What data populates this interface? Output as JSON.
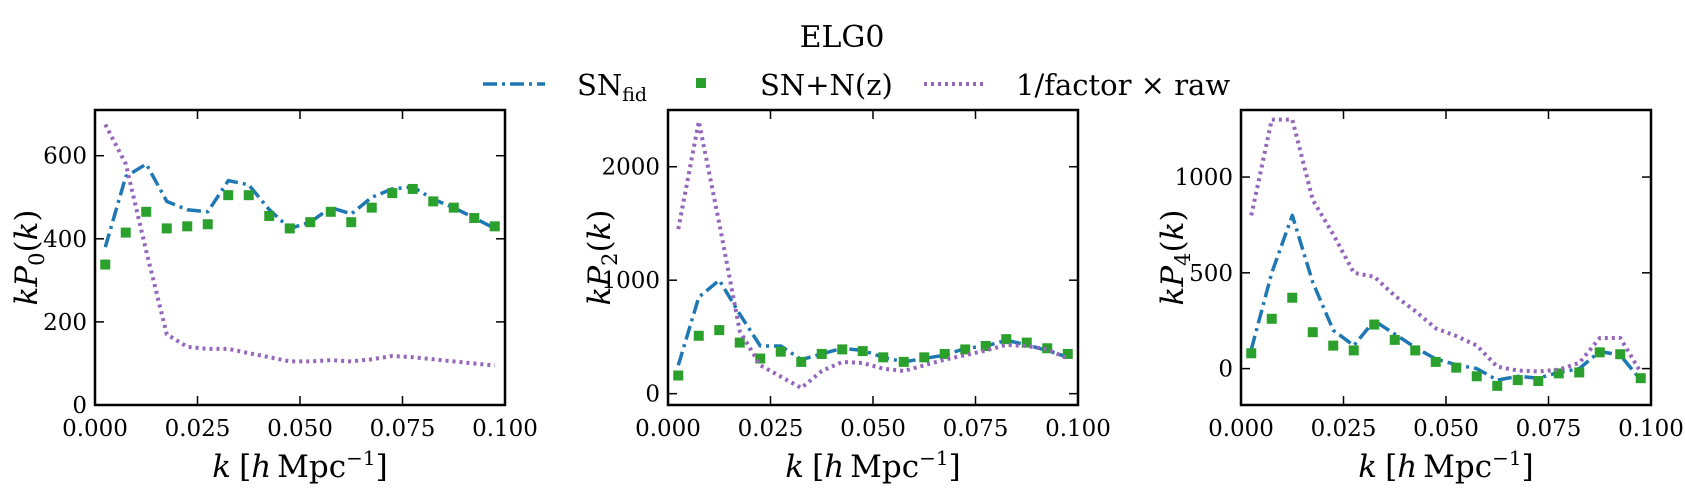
{
  "figure": {
    "title": "ELG0",
    "legend": [
      {
        "name": "SN",
        "subscript": "fid",
        "style": "dashdot",
        "color": "#1f77b4"
      },
      {
        "name": "SN+N(z)",
        "style": "square-markers",
        "color": "#2ca02c"
      },
      {
        "name": "1/factor × raw",
        "style": "dotted",
        "color": "#9467bd"
      }
    ]
  },
  "colors": {
    "sn_fid": "#1f77b4",
    "sn_nz": "#2ca02c",
    "raw": "#9467bd"
  },
  "chart_data": [
    {
      "type": "line",
      "xlabel": "k [h Mpc⁻¹]",
      "ylabel": "kP₀(k)",
      "xlim": [
        0.0,
        0.1
      ],
      "ylim": [
        0,
        710
      ],
      "xticks": [
        0.0,
        0.025,
        0.05,
        0.075,
        0.1
      ],
      "xtick_labels": [
        "0.000",
        "0.025",
        "0.050",
        "0.075",
        "0.100"
      ],
      "yticks": [
        0,
        200,
        400,
        600
      ],
      "ytick_labels": [
        "0",
        "200",
        "400",
        "600"
      ],
      "grid": false,
      "x": [
        0.0025,
        0.0075,
        0.0125,
        0.0175,
        0.0225,
        0.0275,
        0.0325,
        0.0375,
        0.0425,
        0.0475,
        0.0525,
        0.0575,
        0.0625,
        0.0675,
        0.0725,
        0.0775,
        0.0825,
        0.0875,
        0.0925,
        0.0975
      ],
      "series": [
        {
          "name": "SN_fid",
          "style": "dashdot",
          "values": [
            380,
            550,
            580,
            490,
            470,
            465,
            540,
            530,
            470,
            425,
            440,
            475,
            460,
            500,
            520,
            525,
            495,
            475,
            450,
            425
          ]
        },
        {
          "name": "SN+N(z)",
          "style": "markers",
          "values": [
            338,
            415,
            465,
            425,
            430,
            435,
            505,
            505,
            455,
            425,
            440,
            465,
            440,
            475,
            510,
            520,
            490,
            475,
            450,
            430
          ]
        },
        {
          "name": "1/factor × raw",
          "style": "dotted",
          "values": [
            675,
            580,
            370,
            170,
            140,
            135,
            135,
            125,
            115,
            105,
            105,
            108,
            105,
            110,
            118,
            115,
            110,
            105,
            100,
            95
          ]
        }
      ]
    },
    {
      "type": "line",
      "xlabel": "k [h Mpc⁻¹]",
      "ylabel": "kP₂(k)",
      "xlim": [
        0.0,
        0.1
      ],
      "ylim": [
        -100,
        2500
      ],
      "xticks": [
        0.0,
        0.025,
        0.05,
        0.075,
        0.1
      ],
      "xtick_labels": [
        "0.000",
        "0.025",
        "0.050",
        "0.075",
        "0.100"
      ],
      "yticks": [
        0,
        1000,
        2000
      ],
      "ytick_labels": [
        "0",
        "1000",
        "2000"
      ],
      "grid": false,
      "x": [
        0.0025,
        0.0075,
        0.0125,
        0.0175,
        0.0225,
        0.0275,
        0.0325,
        0.0375,
        0.0425,
        0.0475,
        0.0525,
        0.0575,
        0.0625,
        0.0675,
        0.0725,
        0.0775,
        0.0825,
        0.0875,
        0.0925,
        0.0975
      ],
      "series": [
        {
          "name": "SN_fid",
          "style": "dashdot",
          "values": [
            250,
            850,
            1000,
            700,
            420,
            420,
            300,
            350,
            400,
            380,
            320,
            280,
            310,
            340,
            400,
            420,
            470,
            430,
            380,
            320
          ]
        },
        {
          "name": "SN+N(z)",
          "style": "markers",
          "values": [
            160,
            510,
            560,
            450,
            310,
            370,
            280,
            350,
            390,
            375,
            320,
            280,
            320,
            350,
            390,
            420,
            480,
            450,
            400,
            350
          ]
        },
        {
          "name": "1/factor × raw",
          "style": "dotted",
          "values": [
            1450,
            2400,
            1500,
            550,
            250,
            150,
            50,
            200,
            280,
            270,
            220,
            200,
            250,
            300,
            340,
            380,
            430,
            420,
            390,
            310
          ]
        }
      ]
    },
    {
      "type": "line",
      "xlabel": "k [h Mpc⁻¹]",
      "ylabel": "kP₄(k)",
      "xlim": [
        0.0,
        0.1
      ],
      "ylim": [
        -190,
        1350
      ],
      "xticks": [
        0.0,
        0.025,
        0.05,
        0.075,
        0.1
      ],
      "xtick_labels": [
        "0.000",
        "0.025",
        "0.050",
        "0.075",
        "0.100"
      ],
      "yticks": [
        0,
        500,
        1000
      ],
      "ytick_labels": [
        "0",
        "500",
        "1000"
      ],
      "grid": false,
      "x": [
        0.0025,
        0.0075,
        0.0125,
        0.0175,
        0.0225,
        0.0275,
        0.0325,
        0.0375,
        0.0425,
        0.0475,
        0.0525,
        0.0575,
        0.0625,
        0.0675,
        0.0725,
        0.0775,
        0.0825,
        0.0875,
        0.0925,
        0.0975
      ],
      "series": [
        {
          "name": "SN_fid",
          "style": "dashdot",
          "values": [
            100,
            500,
            800,
            450,
            200,
            120,
            250,
            180,
            110,
            50,
            20,
            0,
            -60,
            -40,
            -50,
            -20,
            0,
            90,
            70,
            -60
          ]
        },
        {
          "name": "SN+N(z)",
          "style": "markers",
          "values": [
            80,
            260,
            370,
            190,
            120,
            95,
            230,
            150,
            95,
            35,
            5,
            -40,
            -90,
            -60,
            -65,
            -25,
            -20,
            85,
            75,
            -50
          ]
        },
        {
          "name": "1/factor × raw",
          "style": "dotted",
          "values": [
            800,
            1300,
            1300,
            880,
            700,
            500,
            480,
            380,
            300,
            210,
            170,
            120,
            10,
            -10,
            -15,
            -5,
            30,
            160,
            160,
            -20
          ]
        }
      ]
    }
  ]
}
